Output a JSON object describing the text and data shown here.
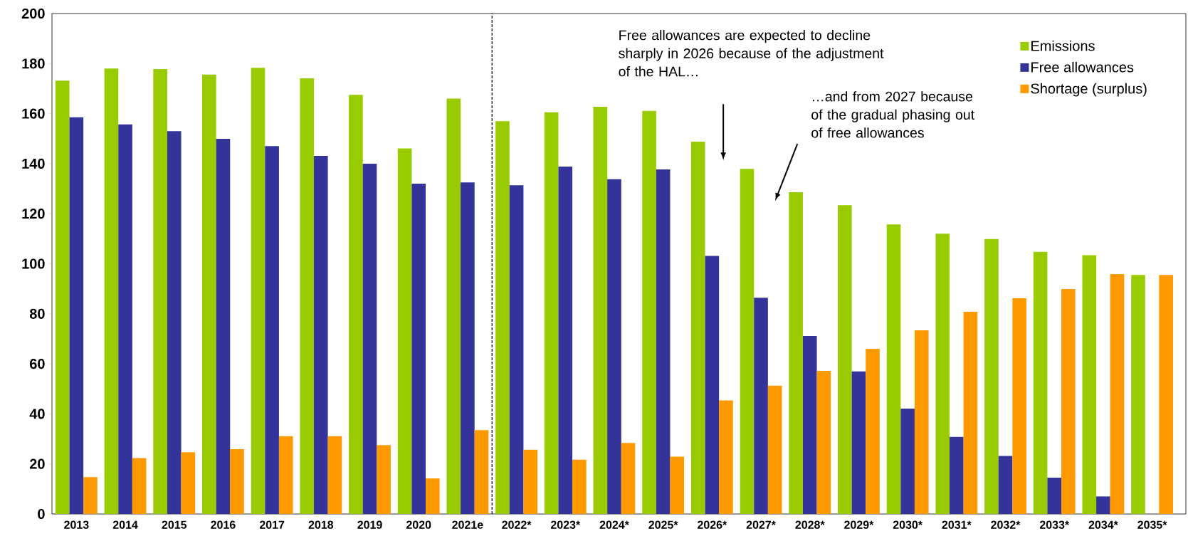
{
  "chart_data": {
    "type": "bar",
    "categories": [
      "2013",
      "2014",
      "2015",
      "2016",
      "2017",
      "2018",
      "2019",
      "2020",
      "2021e",
      "2022*",
      "2023*",
      "2024*",
      "2025*",
      "2026*",
      "2027*",
      "2028*",
      "2029*",
      "2030*",
      "2031*",
      "2032*",
      "2033*",
      "2034*",
      "2035*"
    ],
    "series": [
      {
        "name": "Emissions",
        "color": "#99cc00",
        "values": [
          173.2,
          178,
          177.8,
          175.6,
          178.3,
          174.1,
          167.5,
          146.1,
          166,
          157,
          160.5,
          162.7,
          161.1,
          148.8,
          137.9,
          128.6,
          123.4,
          115.7,
          112,
          109.9,
          104.8,
          103.4,
          95.5
        ]
      },
      {
        "name": "Free allowances",
        "color": "#333399",
        "values": [
          158.5,
          155.7,
          153,
          149.9,
          147,
          143.1,
          140,
          132,
          132.5,
          131.4,
          138.8,
          133.8,
          137.7,
          103.1,
          86.4,
          71.1,
          57,
          42.1,
          30.8,
          23.2,
          14.5,
          7,
          null
        ]
      },
      {
        "name": "Shortage (surplus)",
        "color": "#ff9900",
        "values": [
          14.7,
          22.3,
          24.7,
          25.9,
          31.1,
          31.1,
          27.5,
          14.2,
          33.5,
          25.7,
          21.7,
          28.4,
          22.9,
          45.4,
          51.3,
          57.2,
          66,
          73.4,
          80.8,
          86.2,
          89.9,
          95.9,
          95.5
        ]
      }
    ],
    "ylim": [
      0,
      200
    ],
    "yticks": [
      0,
      20,
      40,
      60,
      80,
      100,
      120,
      140,
      160,
      180,
      200
    ],
    "legend": "top right",
    "grid": false,
    "annotations": [
      "Free allowances are expected to decline sharply in 2026 because of the adjustment of the HAL…",
      "…and from 2027 because of the gradual phasing out of free allowances"
    ]
  }
}
